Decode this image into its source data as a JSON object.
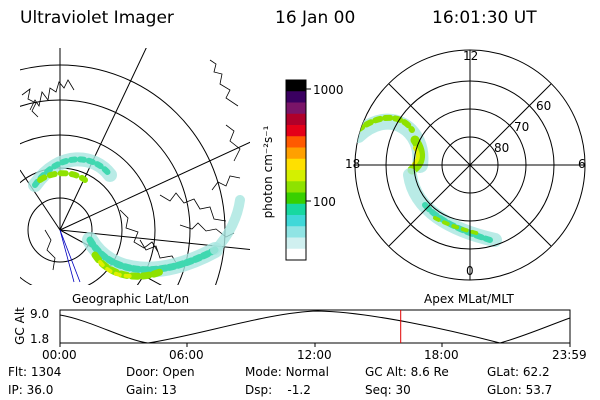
{
  "header": {
    "instrument": "Ultraviolet Imager",
    "date": "16 Jan 00",
    "time": "16:01:30 UT"
  },
  "colorbar": {
    "unit_label": "photon cm⁻²s⁻¹",
    "ticks": [
      "1000",
      "100"
    ],
    "colors": [
      "#000000",
      "#3a0060",
      "#7a1468",
      "#b0002a",
      "#e40018",
      "#ff5a00",
      "#ffa000",
      "#ffe000",
      "#d4f000",
      "#8ee200",
      "#38d000",
      "#18d8a0",
      "#40d8d8",
      "#90e4e4",
      "#d0f0f0",
      "#ffffff"
    ]
  },
  "left_map": {
    "caption": "Geographic Lat/Lon"
  },
  "right_map": {
    "caption": "Apex MLat/MLT",
    "mlt_labels": {
      "top": "12",
      "left": "18",
      "right": "6",
      "bottom": "0"
    },
    "lat_labels": [
      "60",
      "70",
      "80"
    ]
  },
  "timeline": {
    "ylabel": "GC Alt",
    "ytick_top": "9.0",
    "ytick_bottom": "1.8",
    "xticks": [
      "00:00",
      "06:00",
      "12:00",
      "18:00",
      "23:59"
    ],
    "current_time_fraction": 0.668
  },
  "status": {
    "flt": {
      "label": "Flt:",
      "value": "1304"
    },
    "ip": {
      "label": "IP:",
      "value": "36.0"
    },
    "door": {
      "label": "Door:",
      "value": "Open"
    },
    "gain": {
      "label": "Gain:",
      "value": "13"
    },
    "mode": {
      "label": "Mode:",
      "value": "Normal"
    },
    "dsp": {
      "label": "Dsp:",
      "value": "-1.2"
    },
    "gcalt": {
      "label": "GC Alt:",
      "value": "8.6 Re"
    },
    "seq": {
      "label": "Seq:",
      "value": "30"
    },
    "glat": {
      "label": "GLat:",
      "value": "62.2"
    },
    "glon": {
      "label": "GLon:",
      "value": "53.7"
    }
  }
}
